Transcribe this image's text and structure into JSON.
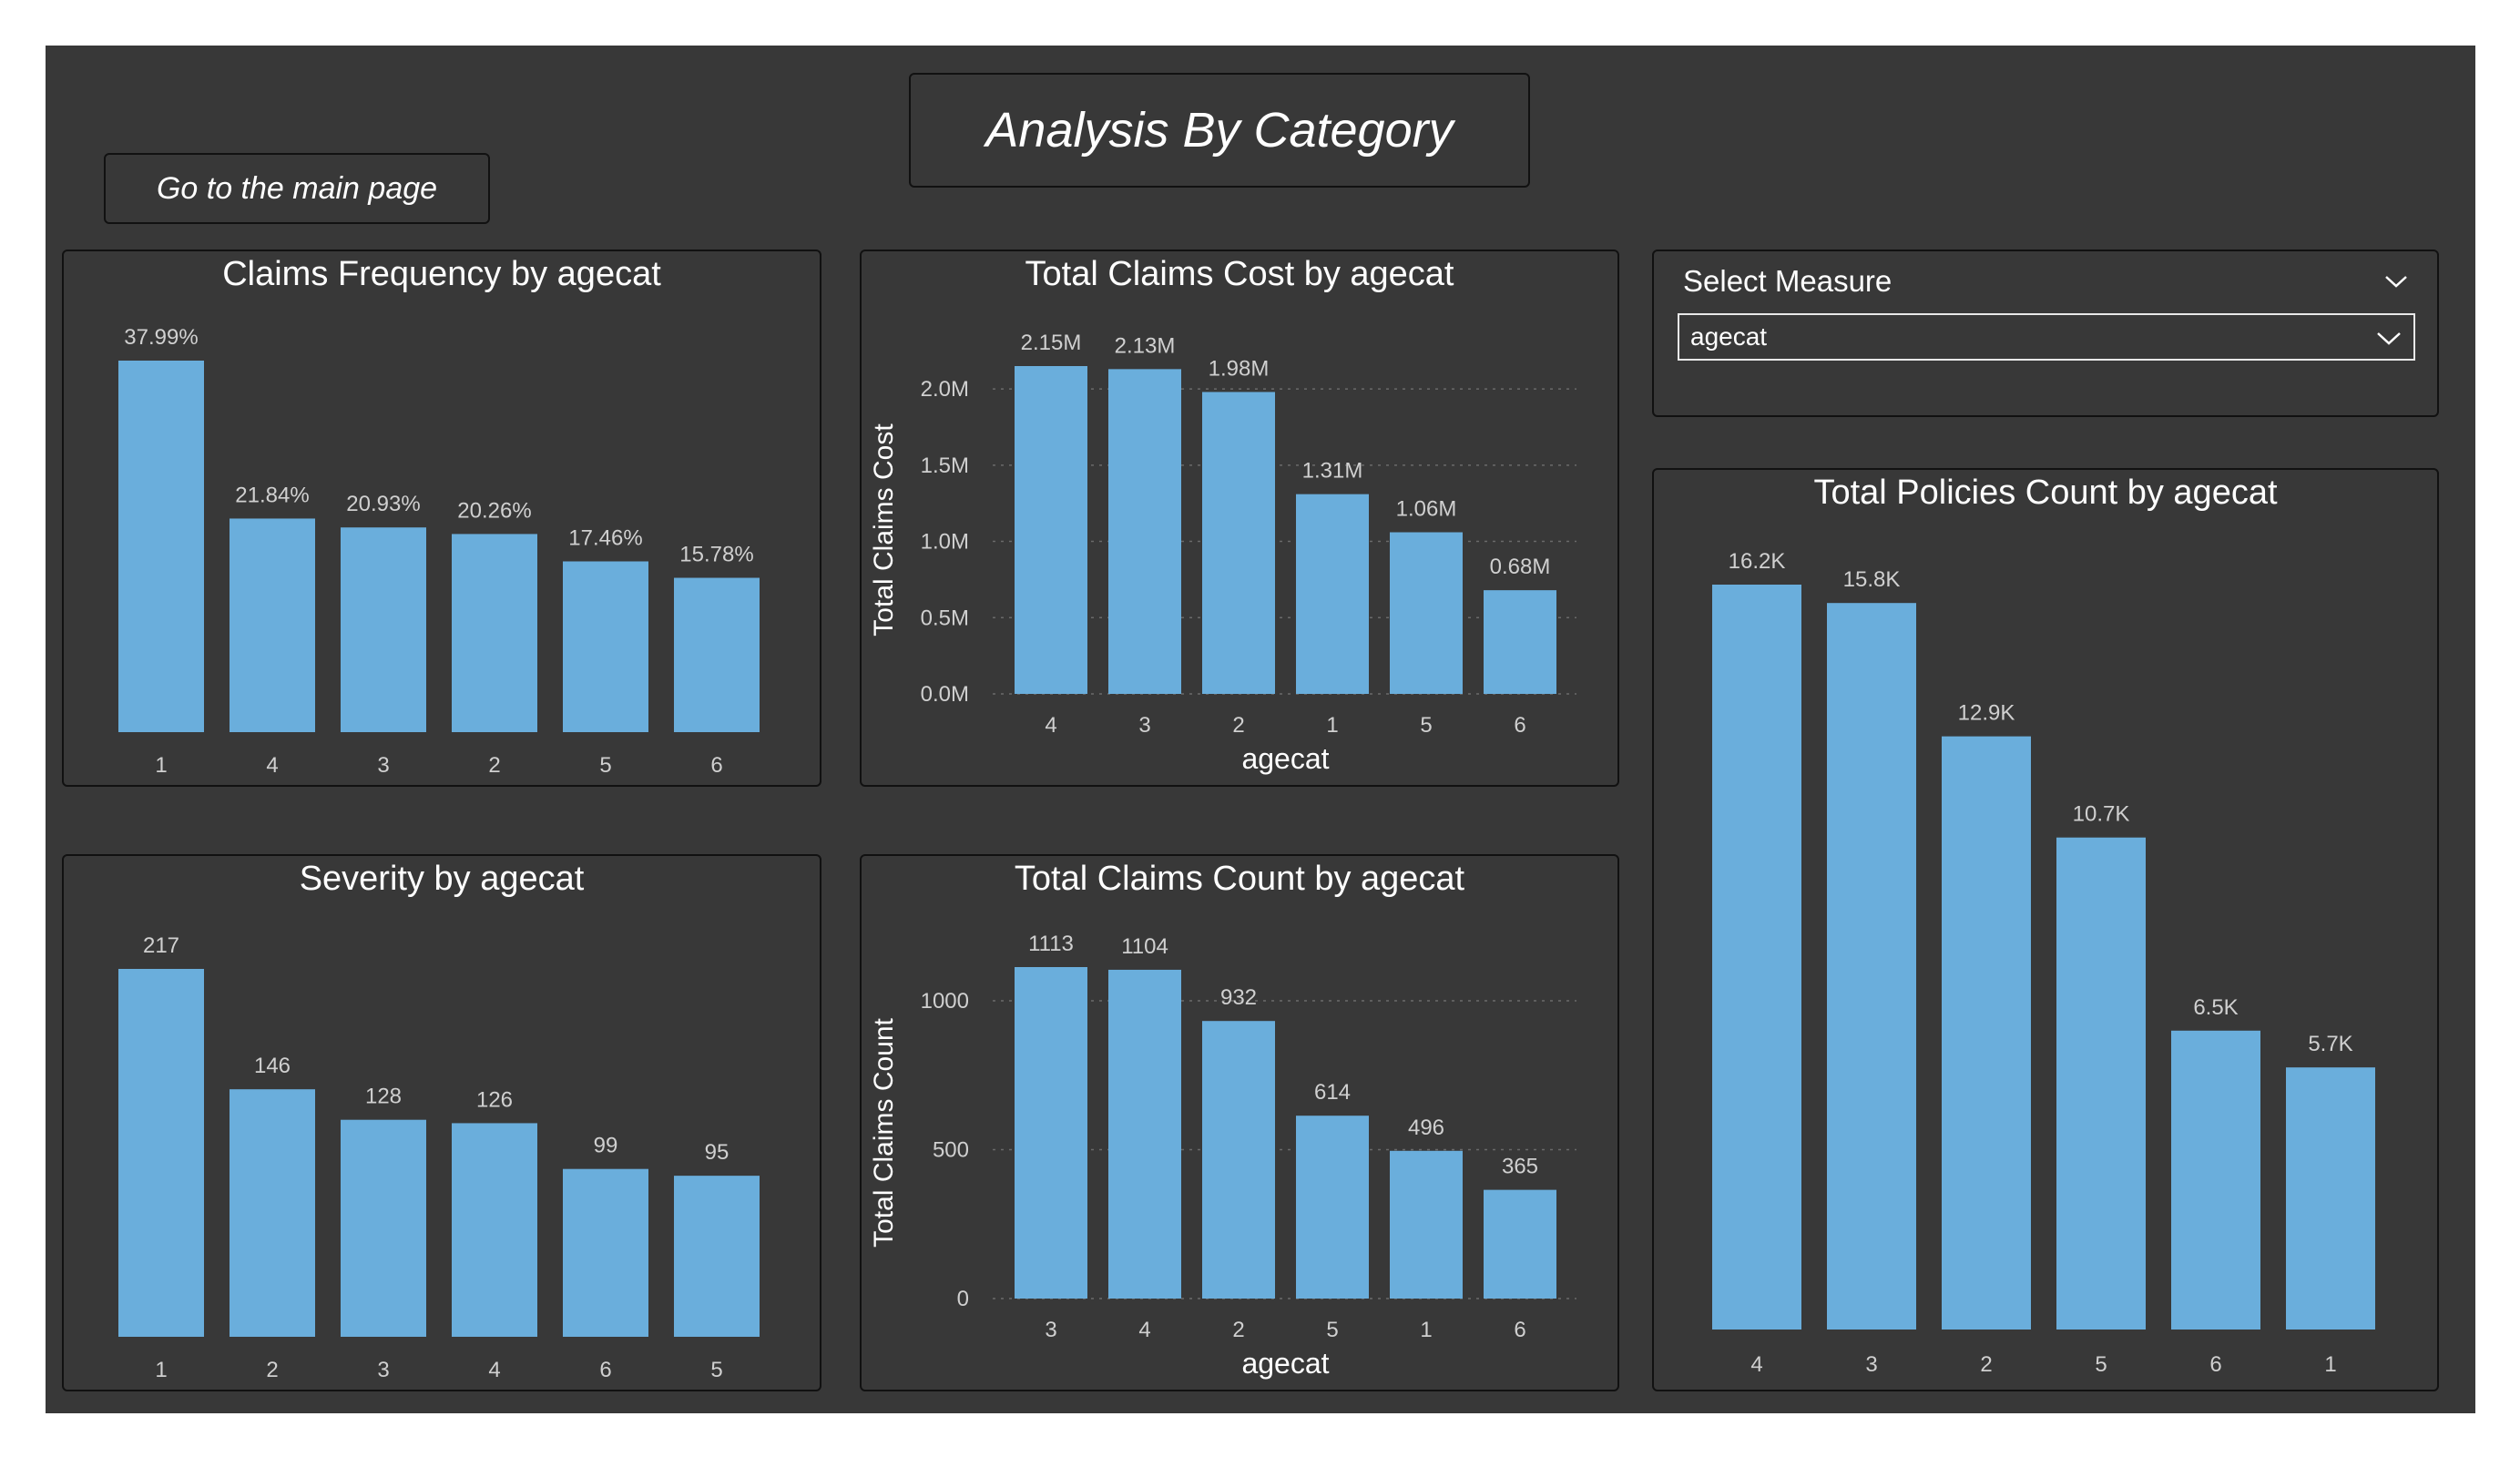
{
  "page": {
    "title": "Analysis By Category",
    "nav_button_label": "Go to the main page"
  },
  "colors": {
    "background": "#383838",
    "bar": "#6aaedc",
    "text": "#ffffff",
    "axis_text": "#d0d0d0"
  },
  "slicer": {
    "header": "Select Measure",
    "selected": "agecat",
    "header_icon": "chevron-down-icon",
    "dropdown_icon": "chevron-down-icon"
  },
  "chart_data": [
    {
      "id": "claims_frequency",
      "type": "bar",
      "title": "Claims Frequency by agecat",
      "categories": [
        "1",
        "4",
        "3",
        "2",
        "5",
        "6"
      ],
      "values": [
        37.99,
        21.84,
        20.93,
        20.26,
        17.46,
        15.78
      ],
      "data_labels": [
        "37.99%",
        "21.84%",
        "20.93%",
        "20.26%",
        "17.46%",
        "15.78%"
      ],
      "xlabel": "",
      "ylabel": "",
      "ylim": [
        0,
        37.99
      ],
      "grid": false
    },
    {
      "id": "total_claims_cost",
      "type": "bar",
      "title": "Total Claims Cost by agecat",
      "categories": [
        "4",
        "3",
        "2",
        "1",
        "5",
        "6"
      ],
      "values": [
        2.15,
        2.13,
        1.98,
        1.31,
        1.06,
        0.68
      ],
      "data_labels": [
        "2.15M",
        "2.13M",
        "1.98M",
        "1.31M",
        "1.06M",
        "0.68M"
      ],
      "xlabel": "agecat",
      "ylabel": "Total Claims Cost",
      "yticks": [
        0,
        0.5,
        1.0,
        1.5,
        2.0
      ],
      "ytick_labels": [
        "0.0M",
        "0.5M",
        "1.0M",
        "1.5M",
        "2.0M"
      ],
      "ylim": [
        0,
        2.15
      ],
      "grid": true
    },
    {
      "id": "severity",
      "type": "bar",
      "title": "Severity by agecat",
      "categories": [
        "1",
        "2",
        "3",
        "4",
        "6",
        "5"
      ],
      "values": [
        217,
        146,
        128,
        126,
        99,
        95
      ],
      "data_labels": [
        "217",
        "146",
        "128",
        "126",
        "99",
        "95"
      ],
      "xlabel": "",
      "ylabel": "",
      "ylim": [
        0,
        217
      ],
      "grid": false
    },
    {
      "id": "total_claims_count",
      "type": "bar",
      "title": "Total Claims Count by agecat",
      "categories": [
        "3",
        "4",
        "2",
        "5",
        "1",
        "6"
      ],
      "values": [
        1113,
        1104,
        932,
        614,
        496,
        365
      ],
      "data_labels": [
        "1113",
        "1104",
        "932",
        "614",
        "496",
        "365"
      ],
      "xlabel": "agecat",
      "ylabel": "Total Claims Count",
      "yticks": [
        0,
        500,
        1000
      ],
      "ytick_labels": [
        "0",
        "500",
        "1000"
      ],
      "ylim": [
        0,
        1113
      ],
      "grid": true
    },
    {
      "id": "total_policies_count",
      "type": "bar",
      "title": "Total Policies Count by agecat",
      "categories": [
        "4",
        "3",
        "2",
        "5",
        "6",
        "1"
      ],
      "values": [
        16.2,
        15.8,
        12.9,
        10.7,
        6.5,
        5.7
      ],
      "data_labels": [
        "16.2K",
        "15.8K",
        "12.9K",
        "10.7K",
        "6.5K",
        "5.7K"
      ],
      "xlabel": "",
      "ylabel": "",
      "ylim": [
        0,
        16.2
      ],
      "grid": false
    }
  ]
}
